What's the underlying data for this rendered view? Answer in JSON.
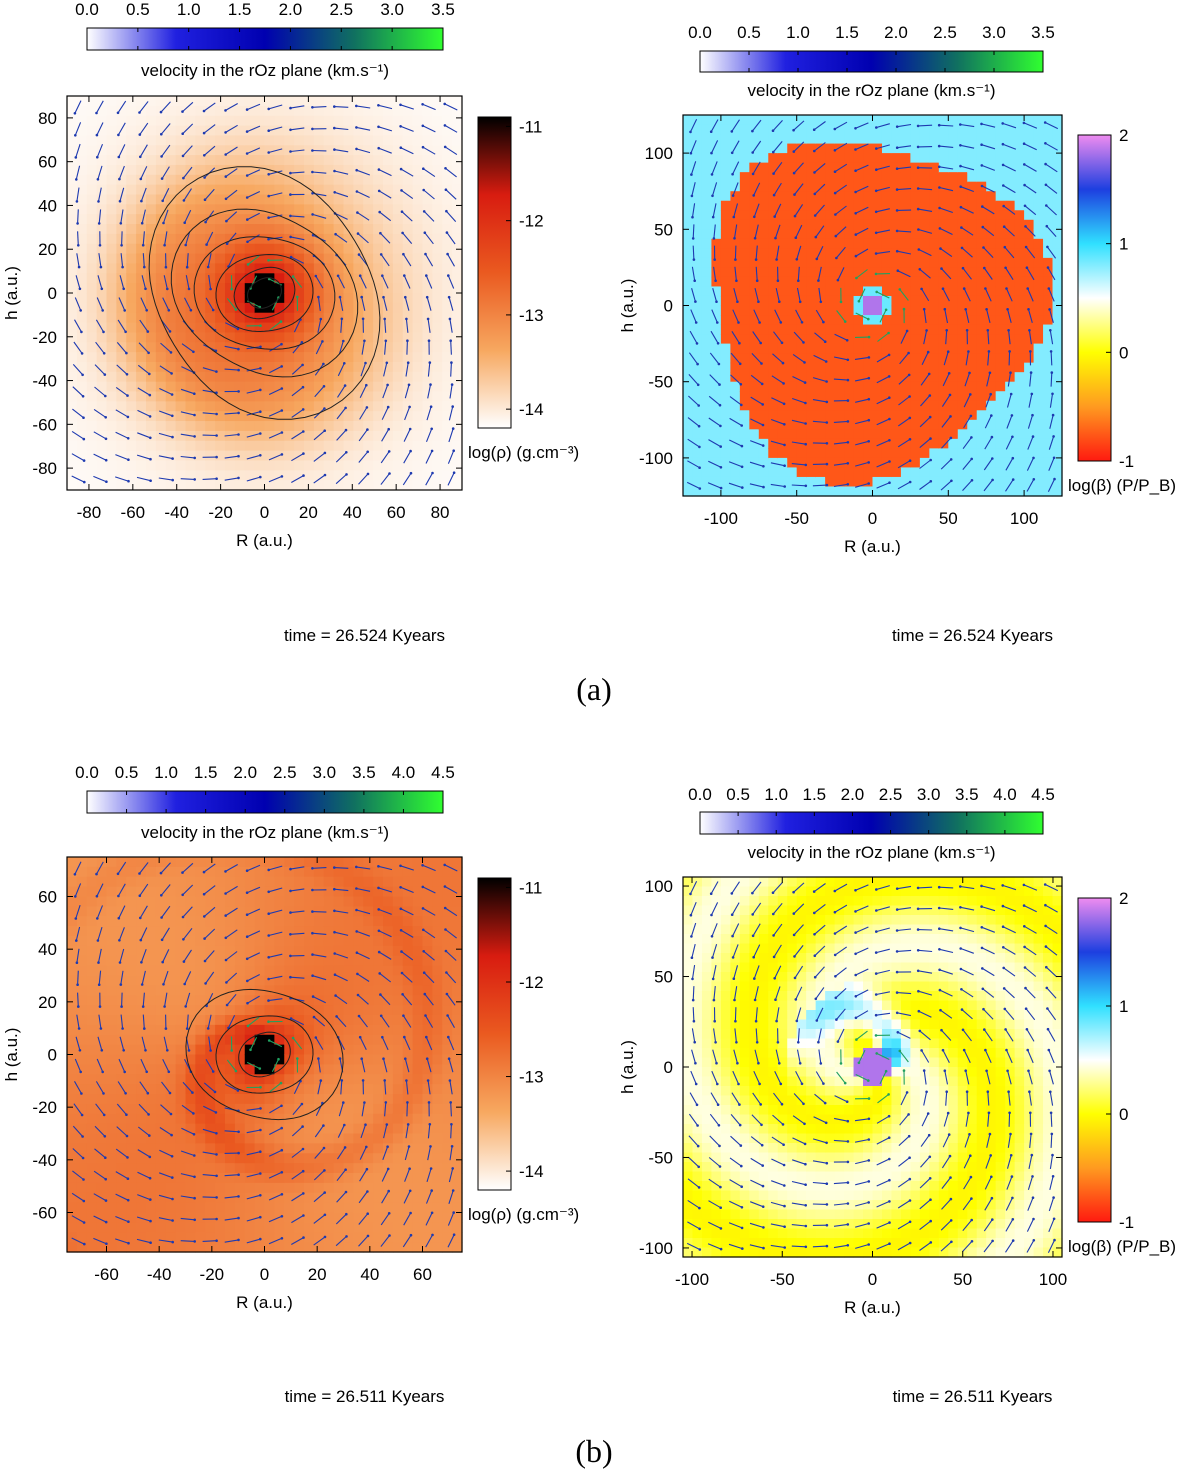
{
  "panels": [
    {
      "label": "(a)"
    },
    {
      "label": "(b)"
    }
  ],
  "chart_data": [
    {
      "type": "heatmap",
      "panel": "(a)",
      "field": "density",
      "xlabel": "R (a.u.)",
      "ylabel": "h (a.u.)",
      "xlim": [
        -90,
        90
      ],
      "ylim": [
        -90,
        90
      ],
      "xticks": [
        -80,
        -60,
        -40,
        -20,
        0,
        20,
        40,
        60,
        80
      ],
      "yticks": [
        -80,
        -60,
        -40,
        -20,
        0,
        20,
        40,
        60,
        80
      ],
      "colorbar": {
        "label": "log(ρ) (g.cm⁻³)",
        "range": [
          -14.2,
          -10.9
        ],
        "ticks": [
          -11,
          -12,
          -13,
          -14
        ],
        "colors": [
          "#ffffff",
          "#f7a860",
          "#ea5a20",
          "#d81c10",
          "#000000"
        ]
      },
      "velocity_bar": {
        "label": "velocity in the rOz plane (km.s⁻¹)",
        "range": [
          0,
          3.5
        ],
        "ticks": [
          "0.0",
          "0.5",
          "1.0",
          "1.5",
          "2.0",
          "2.5",
          "3.0",
          "3.5"
        ]
      },
      "time": "time = 26.524 Kyears",
      "morphology": "compact-core"
    },
    {
      "type": "heatmap",
      "panel": "(a)",
      "field": "beta",
      "xlabel": "R (a.u.)",
      "ylabel": "h (a.u.)",
      "xlim": [
        -125,
        125
      ],
      "ylim": [
        -125,
        125
      ],
      "xticks": [
        -100,
        -50,
        0,
        50,
        100
      ],
      "yticks": [
        -100,
        -50,
        0,
        50,
        100
      ],
      "colorbar": {
        "label": "log(β) (P/P_B)",
        "range": [
          -1,
          2
        ],
        "ticks": [
          2,
          1,
          0,
          -1
        ],
        "colors": [
          "#ff1a10",
          "#ff9a20",
          "#ffff00",
          "#ffffff",
          "#30e0ff",
          "#1d3fe0",
          "#ef8cf0"
        ]
      },
      "velocity_bar": {
        "label": "velocity in the rOz plane (km.s⁻¹)",
        "range": [
          0,
          3.5
        ],
        "ticks": [
          "0.0",
          "0.5",
          "1.0",
          "1.5",
          "2.0",
          "2.5",
          "3.0",
          "3.5"
        ]
      },
      "time": "time = 26.524 Kyears",
      "morphology": "compact-core"
    },
    {
      "type": "heatmap",
      "panel": "(b)",
      "field": "density",
      "xlabel": "R (a.u.)",
      "ylabel": "h (a.u.)",
      "xlim": [
        -75,
        75
      ],
      "ylim": [
        -75,
        75
      ],
      "xticks": [
        -60,
        -40,
        -20,
        0,
        20,
        40,
        60
      ],
      "yticks": [
        -60,
        -40,
        -20,
        0,
        20,
        40,
        60
      ],
      "colorbar": {
        "label": "log(ρ) (g.cm⁻³)",
        "range": [
          -14.2,
          -10.9
        ],
        "ticks": [
          -11,
          -12,
          -13,
          -14
        ],
        "colors": [
          "#ffffff",
          "#f7a860",
          "#ea5a20",
          "#d81c10",
          "#000000"
        ]
      },
      "velocity_bar": {
        "label": "velocity in the rOz plane (km.s⁻¹)",
        "range": [
          0,
          4.5
        ],
        "ticks": [
          "0.0",
          "0.5",
          "1.0",
          "1.5",
          "2.0",
          "2.5",
          "3.0",
          "3.5",
          "4.0",
          "4.5"
        ]
      },
      "time": "time = 26.511 Kyears",
      "morphology": "spiral-arms"
    },
    {
      "type": "heatmap",
      "panel": "(b)",
      "field": "beta",
      "xlabel": "R (a.u.)",
      "ylabel": "h (a.u.)",
      "xlim": [
        -105,
        105
      ],
      "ylim": [
        -105,
        105
      ],
      "xticks": [
        -100,
        -50,
        0,
        50,
        100
      ],
      "yticks": [
        -100,
        -50,
        0,
        50,
        100
      ],
      "colorbar": {
        "label": "log(β) (P/P_B)",
        "range": [
          -1,
          2
        ],
        "ticks": [
          2,
          1,
          0,
          -1
        ],
        "colors": [
          "#ff1a10",
          "#ff9a20",
          "#ffff00",
          "#ffffff",
          "#30e0ff",
          "#1d3fe0",
          "#ef8cf0"
        ]
      },
      "velocity_bar": {
        "label": "velocity in the rOz plane (km.s⁻¹)",
        "range": [
          0,
          4.5
        ],
        "ticks": [
          "0.0",
          "0.5",
          "1.0",
          "1.5",
          "2.0",
          "2.5",
          "3.0",
          "3.5",
          "4.0",
          "4.5"
        ]
      },
      "time": "time = 26.511 Kyears",
      "morphology": "spiral-arms"
    }
  ]
}
